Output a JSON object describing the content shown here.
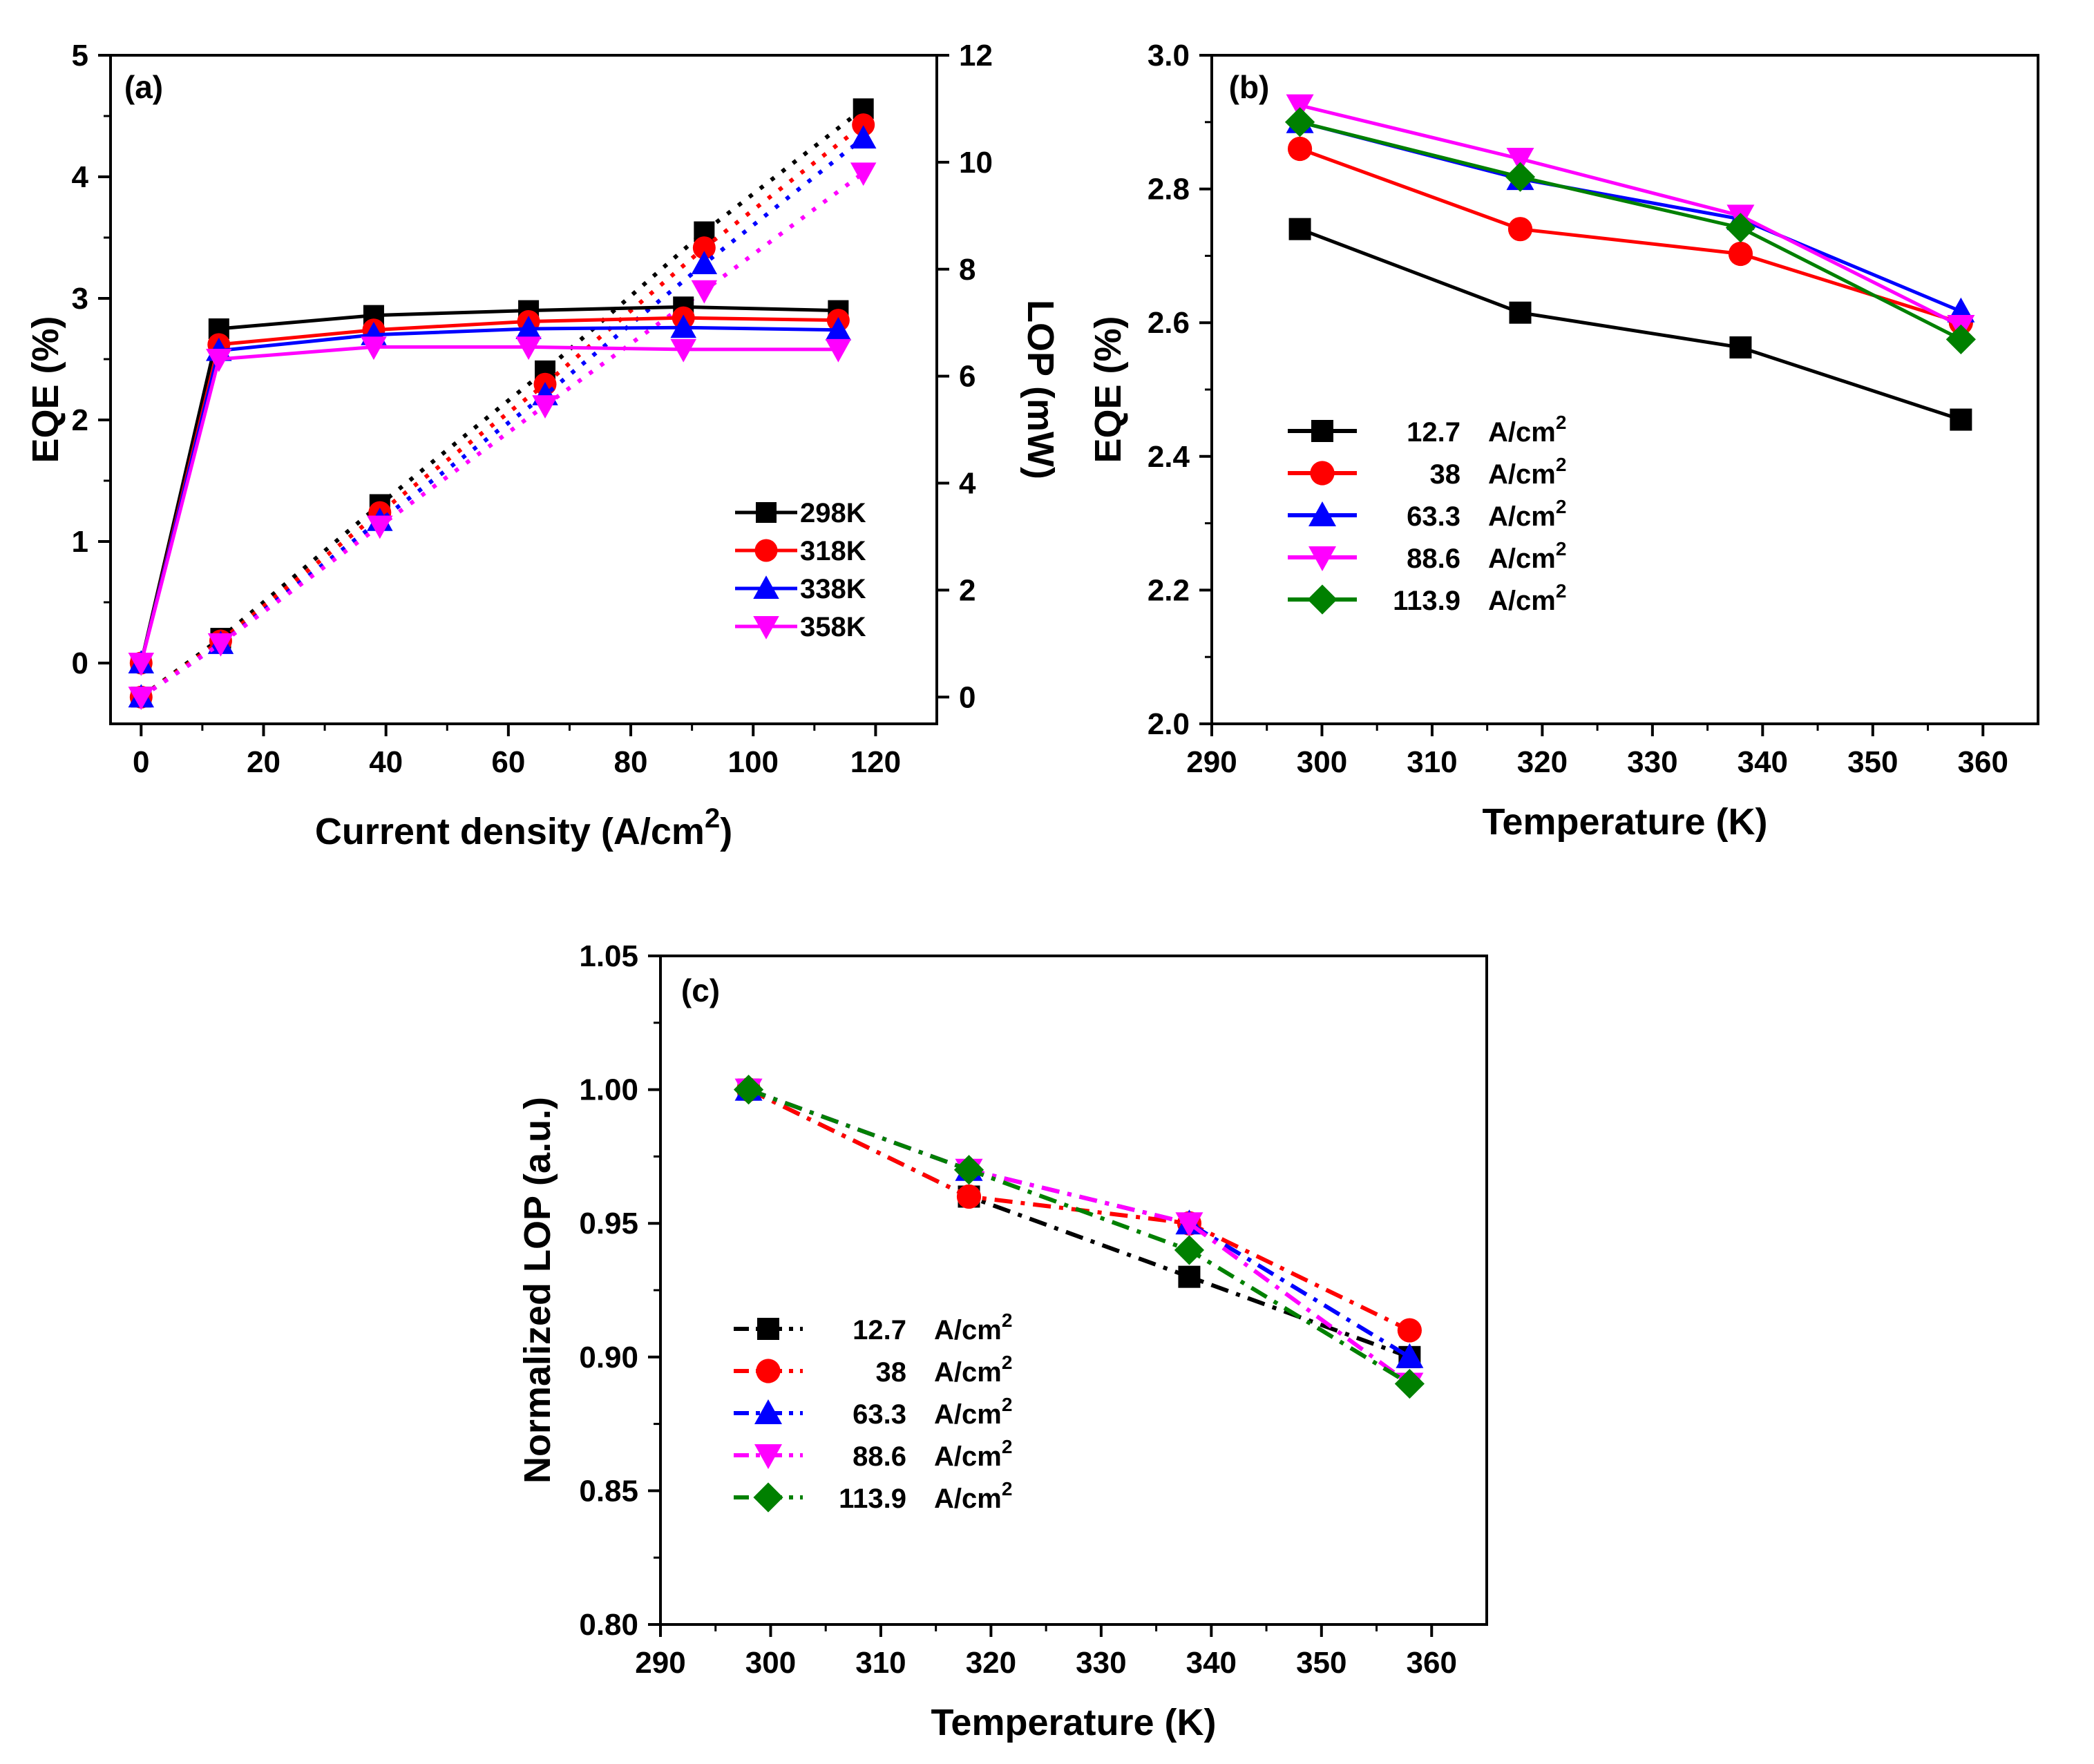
{
  "colors": {
    "black": "#000000",
    "red": "#ff0000",
    "blue": "#0000ff",
    "magenta": "#ff00ff",
    "green": "#008000"
  },
  "chart_data": [
    {
      "panel": "(a)",
      "type": "line",
      "xlabel": "Current density (A/cm",
      "xlabel_superscript": "2",
      "xlabel_suffix": ")",
      "ylabel": "EQE (%)",
      "y2label": "LOP (mW)",
      "xlim": [
        -5,
        130
      ],
      "ylim": [
        -0.5,
        5
      ],
      "y2lim": [
        -0.5,
        12
      ],
      "xticks": [
        0,
        20,
        40,
        60,
        80,
        100,
        120
      ],
      "yticks": [
        0,
        1,
        2,
        3,
        4,
        5
      ],
      "y2ticks": [
        0,
        2,
        4,
        6,
        8,
        10,
        12
      ],
      "legend_position": "middle-right",
      "eqe_series": [
        {
          "name": "298K",
          "color": "#000000",
          "marker": "square",
          "x": [
            0,
            12.7,
            38,
            63.3,
            88.6,
            113.9
          ],
          "values": [
            0.0,
            2.75,
            2.86,
            2.9,
            2.93,
            2.9
          ]
        },
        {
          "name": "318K",
          "color": "#ff0000",
          "marker": "circle",
          "x": [
            0,
            12.7,
            38,
            63.3,
            88.6,
            113.9
          ],
          "values": [
            0.0,
            2.62,
            2.74,
            2.81,
            2.84,
            2.82
          ]
        },
        {
          "name": "338K",
          "color": "#0000ff",
          "marker": "triangle-up",
          "x": [
            0,
            12.7,
            38,
            63.3,
            88.6,
            113.9
          ],
          "values": [
            0.0,
            2.57,
            2.7,
            2.75,
            2.76,
            2.74
          ]
        },
        {
          "name": "358K",
          "color": "#ff00ff",
          "marker": "triangle-down",
          "x": [
            0,
            12.7,
            38,
            63.3,
            88.6,
            113.9
          ],
          "values": [
            0.0,
            2.5,
            2.6,
            2.6,
            2.58,
            2.58
          ]
        }
      ],
      "lop_series": [
        {
          "name": "298K",
          "color": "#000000",
          "marker": "square",
          "x": [
            0,
            13,
            39,
            66,
            92,
            118
          ],
          "values": [
            0.0,
            1.1,
            3.6,
            6.1,
            8.7,
            11.0
          ]
        },
        {
          "name": "318K",
          "color": "#ff0000",
          "marker": "circle",
          "x": [
            0,
            13,
            39,
            66,
            92,
            118
          ],
          "values": [
            0.0,
            1.05,
            3.45,
            5.85,
            8.4,
            10.7
          ]
        },
        {
          "name": "338K",
          "color": "#0000ff",
          "marker": "triangle-up",
          "x": [
            0,
            13,
            39,
            66,
            92,
            118
          ],
          "values": [
            0.0,
            1.0,
            3.3,
            5.65,
            8.1,
            10.45
          ]
        },
        {
          "name": "358K",
          "color": "#ff00ff",
          "marker": "triangle-down",
          "x": [
            0,
            13,
            39,
            66,
            92,
            118
          ],
          "values": [
            0.0,
            1.0,
            3.2,
            5.45,
            7.6,
            9.8
          ]
        }
      ]
    },
    {
      "panel": "(b)",
      "type": "line",
      "xlabel": "Temperature (K)",
      "ylabel": "EQE (%)",
      "xlim": [
        290,
        365
      ],
      "ylim": [
        2.0,
        3.0
      ],
      "xticks": [
        290,
        300,
        310,
        320,
        330,
        340,
        350,
        360
      ],
      "yticks": [
        2.0,
        2.2,
        2.4,
        2.6,
        2.8,
        3.0
      ],
      "ytick_labels": [
        "2.0",
        "2.2",
        "2.4",
        "2.6",
        "2.8",
        "3.0"
      ],
      "x": [
        298,
        318,
        338,
        358
      ],
      "legend_position": "middle-left",
      "unit": "A/cm",
      "unit_superscript": "2",
      "series": [
        {
          "name": "12.7",
          "color": "#000000",
          "marker": "square",
          "values": [
            2.74,
            2.615,
            2.563,
            2.455
          ]
        },
        {
          "name": "38",
          "color": "#ff0000",
          "marker": "circle",
          "values": [
            2.86,
            2.74,
            2.703,
            2.6
          ]
        },
        {
          "name": "63.3",
          "color": "#0000ff",
          "marker": "triangle-up",
          "values": [
            2.9,
            2.815,
            2.755,
            2.617
          ]
        },
        {
          "name": "88.6",
          "color": "#ff00ff",
          "marker": "triangle-down",
          "values": [
            2.925,
            2.845,
            2.76,
            2.595
          ]
        },
        {
          "name": "113.9",
          "color": "#008000",
          "marker": "diamond",
          "values": [
            2.9,
            2.818,
            2.742,
            2.575
          ]
        }
      ]
    },
    {
      "panel": "(c)",
      "type": "line",
      "xlabel": "Temperature (K)",
      "ylabel": "Normalized LOP (a.u.)",
      "xlim": [
        290,
        365
      ],
      "ylim": [
        0.8,
        1.05
      ],
      "xticks": [
        290,
        300,
        310,
        320,
        330,
        340,
        350,
        360
      ],
      "yticks": [
        0.8,
        0.85,
        0.9,
        0.95,
        1.0,
        1.05
      ],
      "ytick_labels": [
        "0.80",
        "0.85",
        "0.90",
        "0.95",
        "1.00",
        "1.05"
      ],
      "x": [
        298,
        318,
        338,
        358
      ],
      "legend_position": "lower-left",
      "unit": "A/cm",
      "unit_superscript": "2",
      "series": [
        {
          "name": "12.7",
          "color": "#000000",
          "marker": "square",
          "values": [
            1.0,
            0.96,
            0.93,
            0.9
          ]
        },
        {
          "name": "38",
          "color": "#ff0000",
          "marker": "circle",
          "values": [
            1.0,
            0.96,
            0.95,
            0.91
          ]
        },
        {
          "name": "63.3",
          "color": "#0000ff",
          "marker": "triangle-up",
          "values": [
            1.0,
            0.97,
            0.95,
            0.9
          ]
        },
        {
          "name": "88.6",
          "color": "#ff00ff",
          "marker": "triangle-down",
          "values": [
            1.0,
            0.97,
            0.95,
            0.89
          ]
        },
        {
          "name": "113.9",
          "color": "#008000",
          "marker": "diamond",
          "values": [
            1.0,
            0.97,
            0.94,
            0.89
          ]
        }
      ]
    }
  ]
}
